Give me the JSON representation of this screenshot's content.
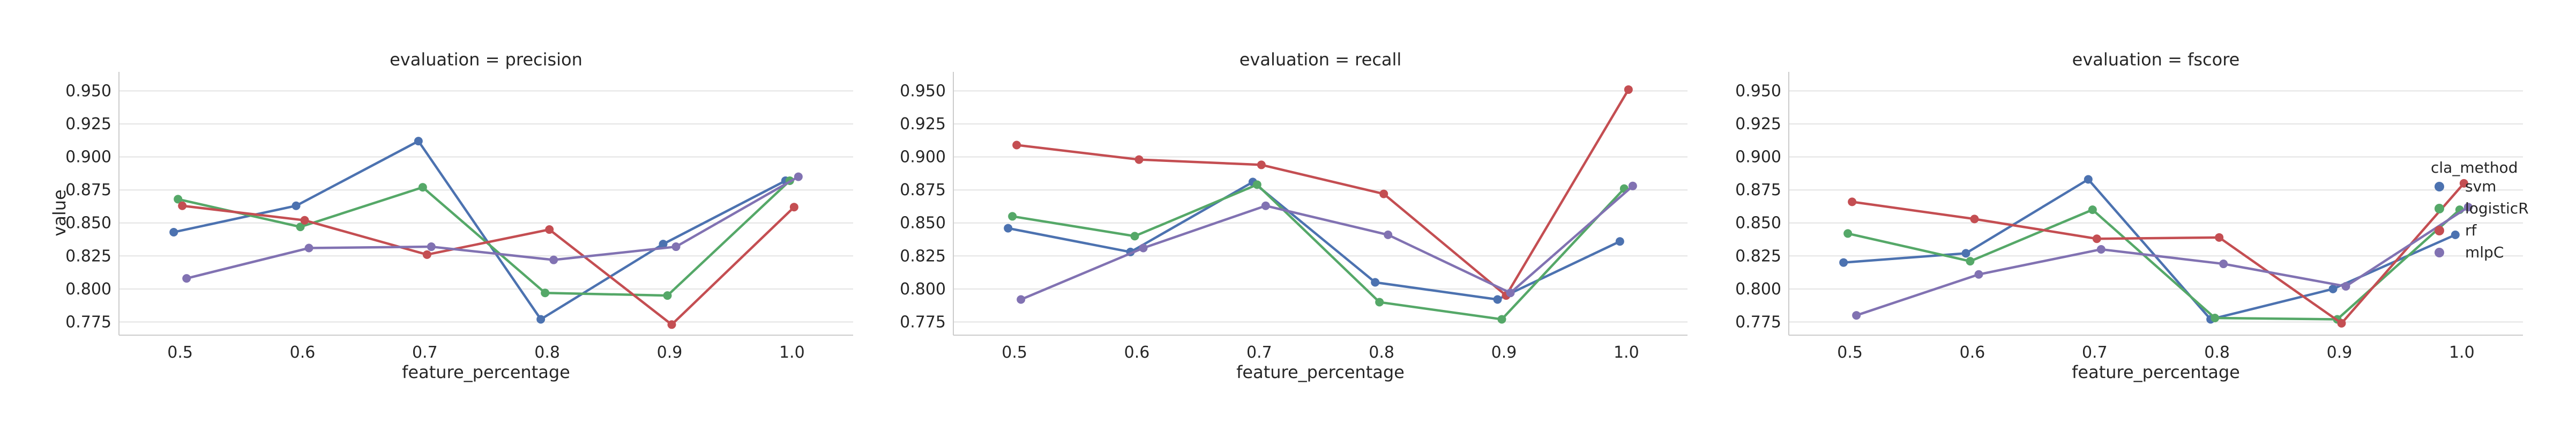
{
  "chart_data": {
    "type": "line",
    "facet_label": "evaluation",
    "x": [
      0.5,
      0.6,
      0.7,
      0.8,
      0.9,
      1.0
    ],
    "x_tick_labels": [
      "0.5",
      "0.6",
      "0.7",
      "0.8",
      "0.9",
      "1.0"
    ],
    "xlabel": "feature_percentage",
    "ylabel": "value",
    "ylim": [
      0.765,
      0.962
    ],
    "y_ticks": [
      0.775,
      0.8,
      0.825,
      0.85,
      0.875,
      0.9,
      0.925,
      0.95
    ],
    "y_tick_labels": [
      "0.775",
      "0.800",
      "0.825",
      "0.850",
      "0.875",
      "0.900",
      "0.925",
      "0.950"
    ],
    "grid": "horizontal",
    "legend": {
      "title": "cla_method",
      "placement": "right",
      "entries": [
        {
          "name": "svm",
          "color": "#4c72b0"
        },
        {
          "name": "logisticR",
          "color": "#55a868"
        },
        {
          "name": "rf",
          "color": "#c44e52"
        },
        {
          "name": "mlpC",
          "color": "#8172b2"
        }
      ]
    },
    "panels": [
      {
        "title": "evaluation = precision",
        "series": [
          {
            "name": "svm",
            "color": "#4c72b0",
            "values": [
              0.843,
              0.863,
              0.912,
              0.777,
              0.834,
              0.882
            ]
          },
          {
            "name": "logisticR",
            "color": "#55a868",
            "values": [
              0.868,
              0.847,
              0.877,
              0.797,
              0.795,
              0.882
            ]
          },
          {
            "name": "rf",
            "color": "#c44e52",
            "values": [
              0.863,
              0.852,
              0.826,
              0.845,
              0.773,
              0.862
            ]
          },
          {
            "name": "mlpC",
            "color": "#8172b2",
            "values": [
              0.808,
              0.831,
              0.832,
              0.822,
              0.832,
              0.885
            ]
          }
        ]
      },
      {
        "title": "evaluation = recall",
        "series": [
          {
            "name": "svm",
            "color": "#4c72b0",
            "values": [
              0.846,
              0.828,
              0.881,
              0.805,
              0.792,
              0.836
            ]
          },
          {
            "name": "logisticR",
            "color": "#55a868",
            "values": [
              0.855,
              0.84,
              0.879,
              0.79,
              0.777,
              0.876
            ]
          },
          {
            "name": "rf",
            "color": "#c44e52",
            "values": [
              0.909,
              0.898,
              0.894,
              0.872,
              0.795,
              0.951
            ]
          },
          {
            "name": "mlpC",
            "color": "#8172b2",
            "values": [
              0.792,
              0.831,
              0.863,
              0.841,
              0.797,
              0.878
            ]
          }
        ]
      },
      {
        "title": "evaluation = fscore",
        "series": [
          {
            "name": "svm",
            "color": "#4c72b0",
            "values": [
              0.82,
              0.827,
              0.883,
              0.777,
              0.8,
              0.841
            ]
          },
          {
            "name": "logisticR",
            "color": "#55a868",
            "values": [
              0.842,
              0.821,
              0.86,
              0.778,
              0.777,
              0.86
            ]
          },
          {
            "name": "rf",
            "color": "#c44e52",
            "values": [
              0.866,
              0.853,
              0.838,
              0.839,
              0.774,
              0.88
            ]
          },
          {
            "name": "mlpC",
            "color": "#8172b2",
            "values": [
              0.78,
              0.811,
              0.83,
              0.819,
              0.802,
              0.862
            ]
          }
        ]
      }
    ]
  }
}
